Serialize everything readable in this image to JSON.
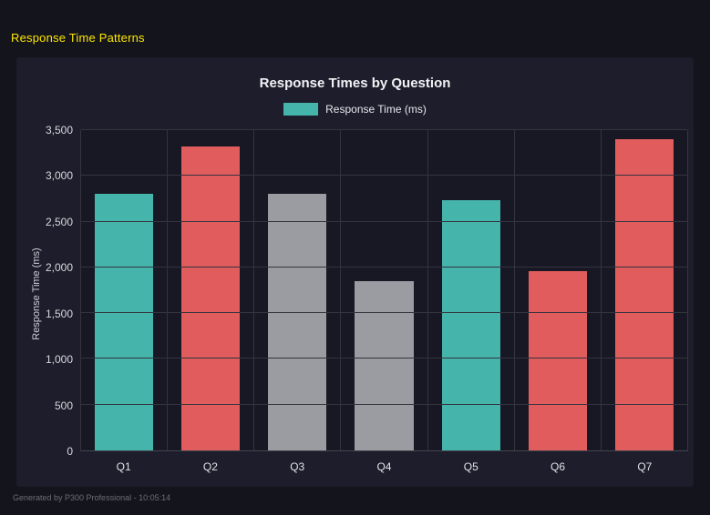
{
  "page": {
    "title": "Response Time Patterns",
    "footer": "Generated by P300 Professional - 10:05:14"
  },
  "chart": {
    "title": "Response Times by Question",
    "legend_label": "Response Time (ms)",
    "y_axis_title": "Response Time (ms)"
  },
  "colors": {
    "teal": "#45b5ab",
    "red": "#e15d5d",
    "gray": "#9b9ba2",
    "accent_title": "#ffe800",
    "panel_bg": "#1d1d2b",
    "page_bg": "#14141c"
  },
  "chart_data": {
    "type": "bar",
    "title": "Response Times by Question",
    "categories": [
      "Q1",
      "Q2",
      "Q3",
      "Q4",
      "Q5",
      "Q6",
      "Q7"
    ],
    "values": [
      2800,
      3320,
      2800,
      1850,
      2730,
      1960,
      3400
    ],
    "bar_colors": [
      "#45b5ab",
      "#e15d5d",
      "#9b9ba2",
      "#9b9ba2",
      "#45b5ab",
      "#e15d5d",
      "#e15d5d"
    ],
    "series": [
      {
        "name": "Response Time (ms)",
        "values": [
          2800,
          3320,
          2800,
          1850,
          2730,
          1960,
          3400
        ]
      }
    ],
    "legend": [
      "Response Time (ms)"
    ],
    "legend_color": "#45b5ab",
    "legend_position": "top",
    "xlabel": "",
    "ylabel": "Response Time (ms)",
    "ylim": [
      0,
      3500
    ],
    "yticks": [
      0,
      500,
      1000,
      1500,
      2000,
      2500,
      3000,
      3500
    ],
    "grid": true
  }
}
